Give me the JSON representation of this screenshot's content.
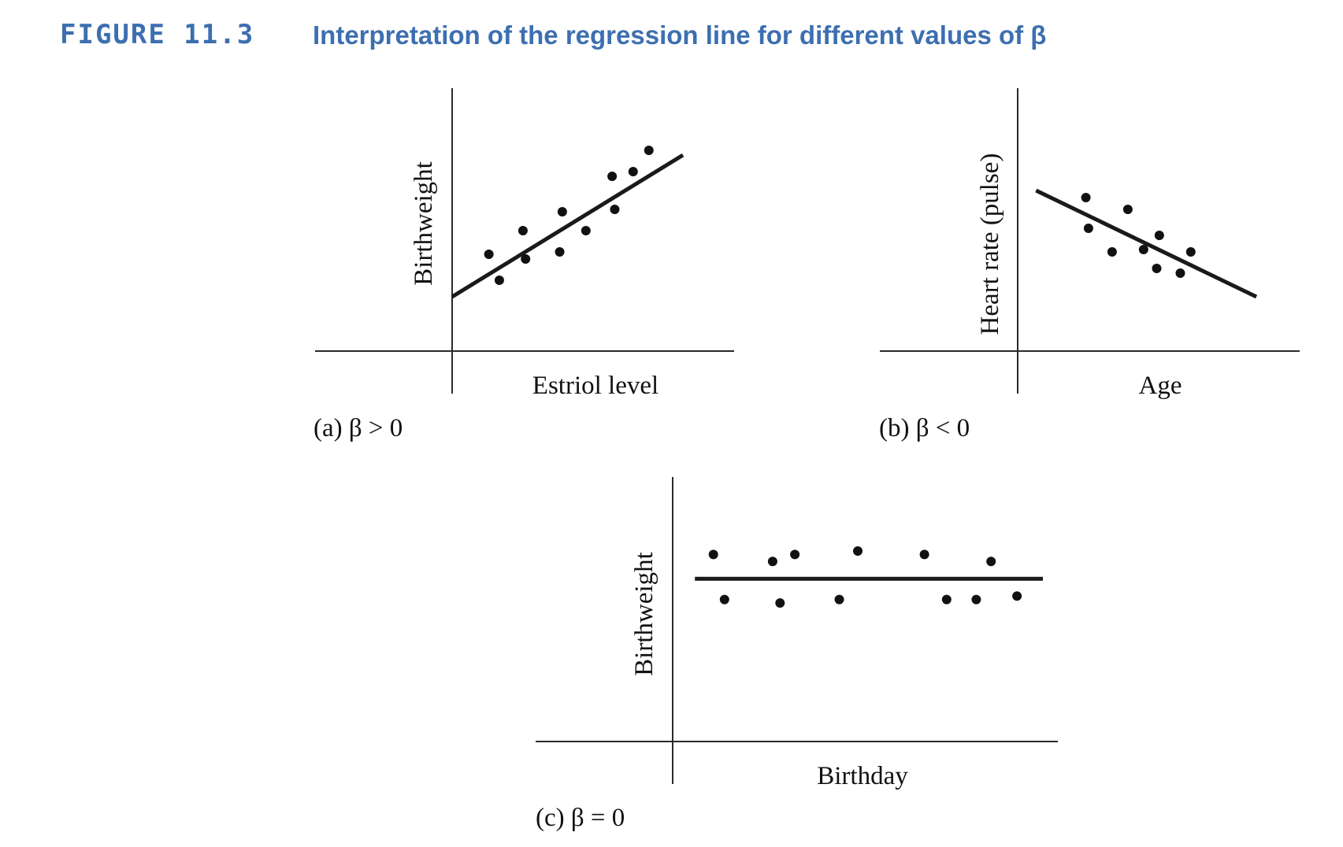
{
  "figure": {
    "label": "FIGURE 11.3",
    "title": "Interpretation of the regression line for different values of β"
  },
  "colors": {
    "heading": "#3d6fb0",
    "ink": "#111111"
  },
  "chart_data": [
    {
      "type": "scatter",
      "caption": "(a) β > 0",
      "xlabel": "Estriol level",
      "ylabel": "Birthweight",
      "xlim": [
        0,
        10
      ],
      "ylim": [
        0,
        10
      ],
      "points": [
        {
          "x": 1.4,
          "y": 4.1
        },
        {
          "x": 1.8,
          "y": 3.0
        },
        {
          "x": 2.7,
          "y": 5.1
        },
        {
          "x": 2.8,
          "y": 3.9
        },
        {
          "x": 4.1,
          "y": 4.2
        },
        {
          "x": 4.2,
          "y": 5.9
        },
        {
          "x": 5.1,
          "y": 5.1
        },
        {
          "x": 6.1,
          "y": 7.4
        },
        {
          "x": 6.2,
          "y": 6.0
        },
        {
          "x": 6.9,
          "y": 7.6
        },
        {
          "x": 7.5,
          "y": 8.5
        }
      ],
      "line": [
        [
          0,
          2.3
        ],
        [
          8.8,
          8.3
        ]
      ]
    },
    {
      "type": "scatter",
      "caption": "(b) β < 0",
      "xlabel": "Age",
      "ylabel": "Heart rate (pulse)",
      "xlim": [
        0,
        10
      ],
      "ylim": [
        0,
        10
      ],
      "points": [
        {
          "x": 2.6,
          "y": 6.5
        },
        {
          "x": 2.7,
          "y": 5.2
        },
        {
          "x": 3.6,
          "y": 4.2
        },
        {
          "x": 4.2,
          "y": 6.0
        },
        {
          "x": 4.8,
          "y": 4.3
        },
        {
          "x": 5.3,
          "y": 3.5
        },
        {
          "x": 5.4,
          "y": 4.9
        },
        {
          "x": 6.2,
          "y": 3.3
        },
        {
          "x": 6.6,
          "y": 4.2
        }
      ],
      "line": [
        [
          0.7,
          6.8
        ],
        [
          9.1,
          2.3
        ]
      ]
    },
    {
      "type": "scatter",
      "caption": "(c) β = 0",
      "xlabel": "Birthday",
      "ylabel": "Birthweight",
      "xlim": [
        0,
        10
      ],
      "ylim": [
        0,
        10
      ],
      "points": [
        {
          "x": 1.1,
          "y": 5.4
        },
        {
          "x": 1.4,
          "y": 4.1
        },
        {
          "x": 2.7,
          "y": 5.2
        },
        {
          "x": 2.9,
          "y": 4.0
        },
        {
          "x": 3.3,
          "y": 5.4
        },
        {
          "x": 4.5,
          "y": 4.1
        },
        {
          "x": 5.0,
          "y": 5.5
        },
        {
          "x": 6.8,
          "y": 5.4
        },
        {
          "x": 7.4,
          "y": 4.1
        },
        {
          "x": 8.2,
          "y": 4.1
        },
        {
          "x": 8.6,
          "y": 5.2
        },
        {
          "x": 9.3,
          "y": 4.2
        }
      ],
      "line": [
        [
          0.6,
          4.7
        ],
        [
          10,
          4.7
        ]
      ]
    }
  ]
}
